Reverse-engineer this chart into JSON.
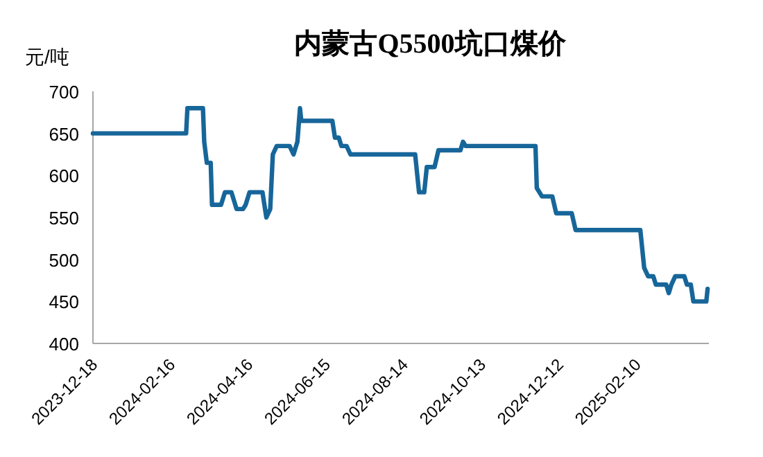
{
  "chart_data": {
    "type": "line",
    "title": "内蒙古Q5500坑口煤价",
    "ylabel": "元/吨",
    "x": [
      "2023-12-18",
      "2024-02-28",
      "2024-02-29",
      "2024-03-12",
      "2024-03-13",
      "2024-03-15",
      "2024-03-18",
      "2024-03-19",
      "2024-03-26",
      "2024-03-29",
      "2024-04-03",
      "2024-04-07",
      "2024-04-12",
      "2024-04-14",
      "2024-04-17",
      "2024-04-27",
      "2024-04-30",
      "2024-05-03",
      "2024-05-05",
      "2024-05-08",
      "2024-05-18",
      "2024-05-21",
      "2024-05-24",
      "2024-05-26",
      "2024-05-27",
      "2024-06-20",
      "2024-06-22",
      "2024-06-25",
      "2024-06-27",
      "2024-07-01",
      "2024-07-04",
      "2024-08-23",
      "2024-08-26",
      "2024-08-30",
      "2024-09-01",
      "2024-09-07",
      "2024-09-10",
      "2024-09-27",
      "2024-09-29",
      "2024-10-01",
      "2024-11-24",
      "2024-11-25",
      "2024-11-29",
      "2024-12-07",
      "2024-12-10",
      "2024-12-22",
      "2024-12-25",
      "2025-02-13",
      "2025-02-16",
      "2025-02-19",
      "2025-02-23",
      "2025-02-25",
      "2025-03-05",
      "2025-03-07",
      "2025-03-09",
      "2025-03-12",
      "2025-03-19",
      "2025-03-21",
      "2025-03-24",
      "2025-03-26",
      "2025-04-05",
      "2025-04-06"
    ],
    "series": [
      {
        "color": "#17669a",
        "values": [
          650,
          650,
          680,
          680,
          640,
          615,
          615,
          565,
          565,
          580,
          580,
          560,
          560,
          565,
          580,
          580,
          550,
          560,
          625,
          635,
          635,
          625,
          640,
          680,
          665,
          665,
          645,
          645,
          635,
          635,
          625,
          625,
          580,
          580,
          610,
          610,
          630,
          630,
          640,
          635,
          635,
          585,
          575,
          575,
          555,
          555,
          535,
          535,
          490,
          480,
          480,
          470,
          470,
          460,
          470,
          480,
          480,
          470,
          470,
          450,
          450,
          465
        ]
      }
    ],
    "xlim": [
      "2023-12-18",
      "2025-04-07"
    ],
    "xticks": [
      "2023-12-18",
      "2024-02-16",
      "2024-04-16",
      "2024-06-15",
      "2024-08-14",
      "2024-10-13",
      "2024-12-12",
      "2025-02-10"
    ],
    "ylim": [
      400,
      700
    ],
    "yticks": [
      400,
      450,
      500,
      550,
      600,
      650,
      700
    ],
    "line_style": "solid"
  }
}
